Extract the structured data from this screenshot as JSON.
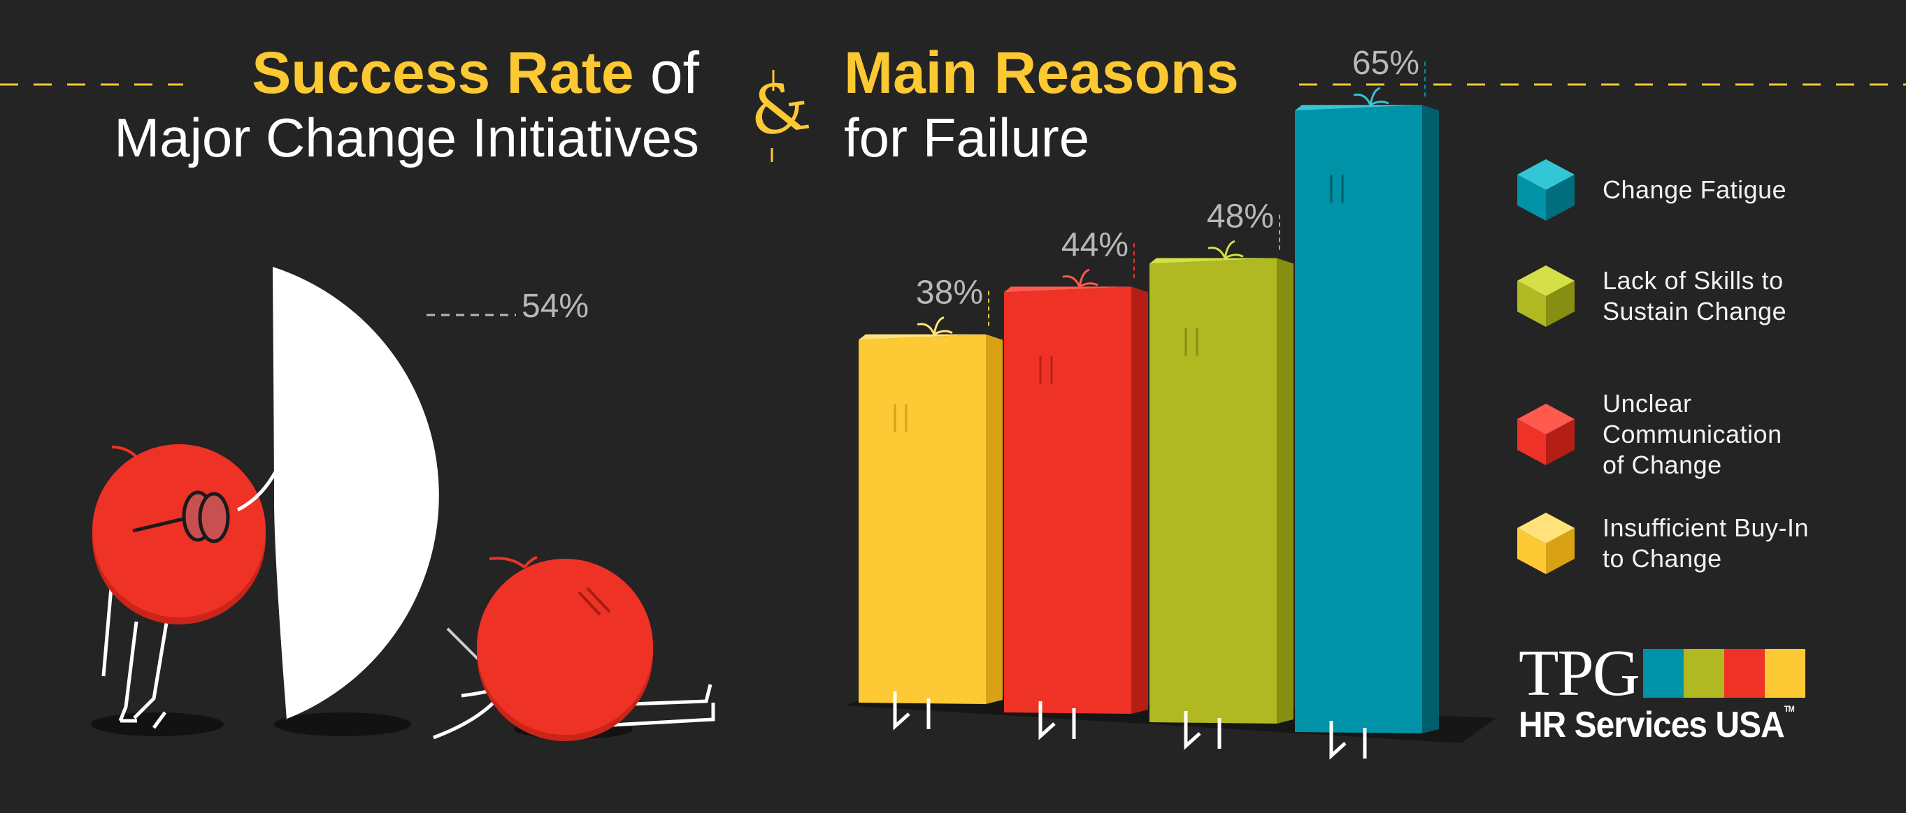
{
  "left_title": {
    "highlight": "Success Rate",
    "rest": " of",
    "line2": "Major Change Initiatives"
  },
  "ampersand": "&",
  "right_title": {
    "highlight": "Main Reasons",
    "line2": "for Failure"
  },
  "colors": {
    "background": "#242424",
    "accent": "#fcc932",
    "teal": "#0092a6",
    "green": "#b0b921",
    "red": "#ee3226",
    "yellow": "#fdc934",
    "white": "#ffffff",
    "label_gray": "#b8b8b8"
  },
  "logo": {
    "tpg": "TPG",
    "line2": "HR Services USA",
    "tm": "TM",
    "stripe_colors": [
      "#0092a6",
      "#b0b921",
      "#ee3226",
      "#fdc934"
    ]
  },
  "chart_data": [
    {
      "type": "pie",
      "title": "Success Rate of Major Change Initiatives",
      "values": [
        54
      ],
      "labels": [
        "54%"
      ],
      "note": "Only the 54% segment is drawn (white half-disc)"
    },
    {
      "type": "bar",
      "title": "Main Reasons for Failure",
      "categories": [
        "Insufficient Buy-In to Change",
        "Unclear Communication of Change",
        "Lack of Skills to Sustain Change",
        "Change Fatigue"
      ],
      "values": [
        38,
        44,
        48,
        65
      ],
      "value_labels": [
        "38%",
        "44%",
        "48%",
        "65%"
      ],
      "bar_colors": [
        "#fdc934",
        "#ee3226",
        "#b0b921",
        "#0092a6"
      ],
      "ylim": [
        0,
        100
      ],
      "xlabel": "",
      "ylabel": "",
      "grid": false,
      "legend_position": "right",
      "legend": [
        {
          "label": "Change Fatigue",
          "color": "#0092a6"
        },
        {
          "label": "Lack of Skills to\nSustain Change",
          "color": "#b0b921"
        },
        {
          "label": "Unclear\nCommunication\nof Change",
          "color": "#ee3226"
        },
        {
          "label": "Insufficient Buy-In\nto Change",
          "color": "#fdc934"
        }
      ]
    }
  ]
}
